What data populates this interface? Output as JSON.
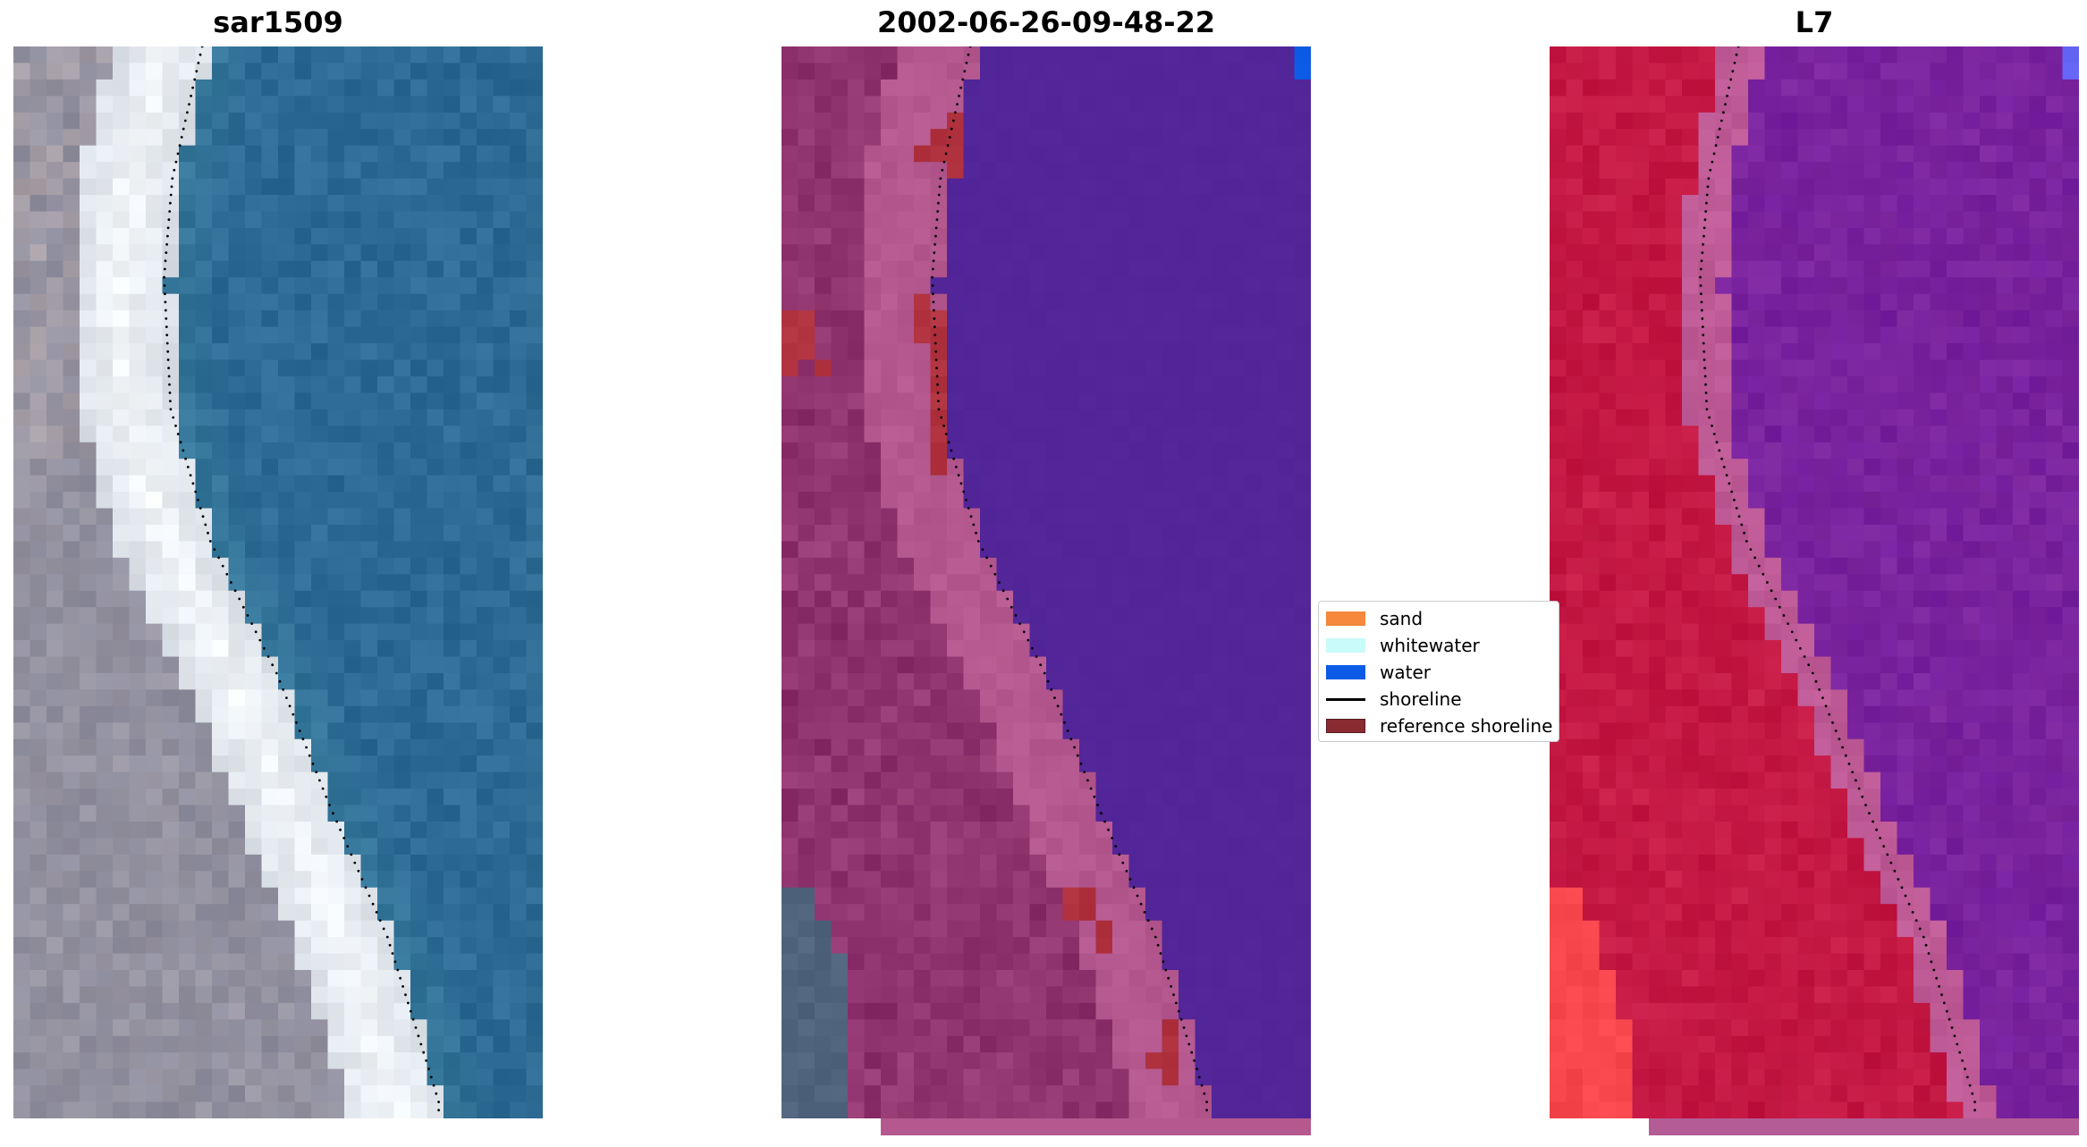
{
  "panels": [
    {
      "title": "sar1509",
      "kind": "rgb"
    },
    {
      "title": "2002-06-26-09-48-22",
      "kind": "classified"
    },
    {
      "title": "L7",
      "kind": "index"
    }
  ],
  "legend": {
    "items": [
      {
        "label": "sand",
        "color": "#f5883c",
        "type": "patch"
      },
      {
        "label": "whitewater",
        "color": "#c9fbfb",
        "type": "patch"
      },
      {
        "label": "water",
        "color": "#0b5be6",
        "type": "patch"
      },
      {
        "label": "shoreline",
        "color": "#000000",
        "type": "line"
      },
      {
        "label": "reference shoreline",
        "color": "#8a2b32",
        "type": "patch"
      }
    ]
  },
  "colors": {
    "water_rgb": "#2e6b94",
    "sand_rgb": "#f4f7fa",
    "land_rgb": "#8d8d9e",
    "class_water": "#522598",
    "class_sand": "#b4588f",
    "class_land": "#852a65",
    "class_reference": "#b0323f",
    "index_land": "#c1133f",
    "index_water": "#7d269e"
  }
}
